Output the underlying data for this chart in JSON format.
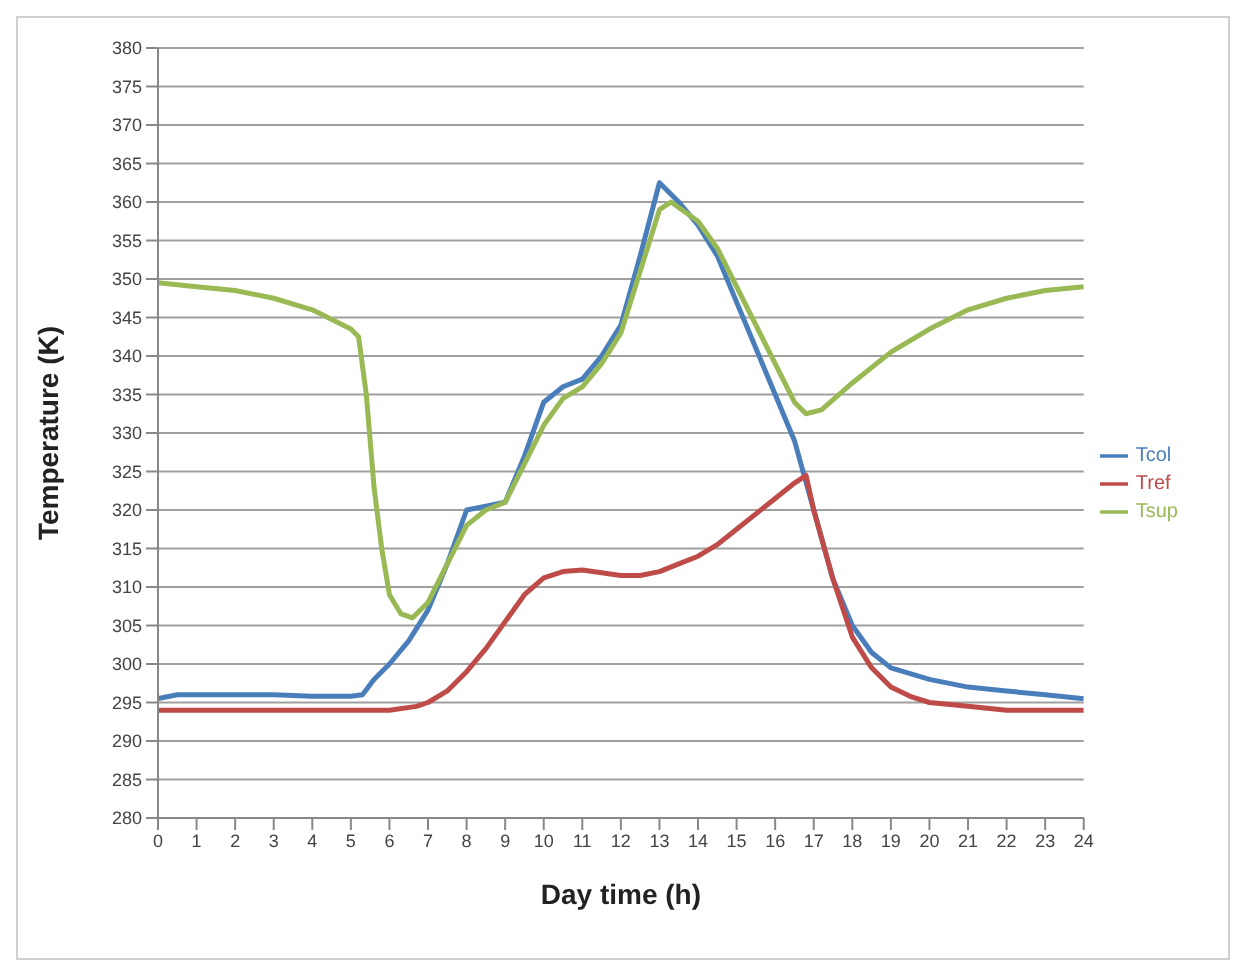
{
  "chart_data": {
    "type": "line",
    "xlabel": "Day time (h)",
    "ylabel": "Temperature (K)",
    "xlim": [
      0,
      24
    ],
    "xticks": [
      0,
      1,
      2,
      3,
      4,
      5,
      6,
      7,
      8,
      9,
      10,
      11,
      12,
      13,
      14,
      15,
      16,
      17,
      18,
      19,
      20,
      21,
      22,
      23,
      24
    ],
    "ylim": [
      280,
      380
    ],
    "yticks": [
      280,
      285,
      290,
      295,
      300,
      305,
      310,
      315,
      320,
      325,
      330,
      335,
      340,
      345,
      350,
      355,
      360,
      365,
      370,
      375,
      380
    ],
    "grid": "y",
    "legend": "right",
    "line_style": "solid",
    "series": [
      {
        "name": "Tcol",
        "color": "#4a7ebb",
        "x": [
          0,
          0.5,
          1,
          2,
          3,
          4,
          5,
          5.3,
          5.6,
          6,
          6.5,
          7,
          7.5,
          8,
          8.5,
          9,
          9.5,
          10,
          10.5,
          11,
          11.5,
          12,
          12.5,
          13,
          13.5,
          14,
          14.5,
          15,
          15.5,
          16,
          16.5,
          17,
          17.5,
          18,
          18.5,
          19,
          20,
          21,
          22,
          23,
          24
        ],
        "values": [
          295.5,
          296,
          296,
          296,
          296,
          295.8,
          295.8,
          296,
          298,
          300,
          303,
          307,
          313,
          320,
          320.5,
          321,
          327,
          334,
          336,
          337,
          340,
          344,
          353,
          362.5,
          360,
          357,
          353,
          347,
          341,
          335,
          329,
          320,
          311,
          305,
          301.5,
          299.5,
          298,
          297,
          296.5,
          296,
          295.5
        ]
      },
      {
        "name": "Tsup",
        "color": "#98b954",
        "x": [
          0,
          1,
          2,
          3,
          4,
          5,
          5.2,
          5.4,
          5.6,
          5.8,
          6,
          6.3,
          6.6,
          7,
          7.5,
          8,
          8.5,
          9,
          9.5,
          10,
          10.5,
          11,
          11.5,
          12,
          12.5,
          13,
          13.3,
          14,
          14.5,
          15,
          15.5,
          16,
          16.5,
          16.8,
          17.2,
          18,
          19,
          20,
          21,
          22,
          23,
          24
        ],
        "values": [
          349.5,
          349,
          348.5,
          347.5,
          346,
          343.5,
          342.5,
          335,
          323,
          315,
          309,
          306.5,
          306,
          308,
          313,
          318,
          320,
          321,
          326,
          331,
          334.5,
          336,
          339,
          343,
          351,
          359,
          360,
          357.5,
          354,
          349,
          344,
          339,
          334,
          332.5,
          333,
          336.5,
          340.5,
          343.5,
          346,
          347.5,
          348.5,
          349
        ]
      },
      {
        "name": "Tref",
        "color": "#be4b48",
        "x": [
          0,
          6,
          6.7,
          7,
          7.5,
          8,
          8.5,
          9,
          9.5,
          10,
          10.5,
          11,
          12,
          12.5,
          13,
          13.5,
          14,
          14.5,
          15,
          15.5,
          16,
          16.5,
          16.8,
          17,
          17.5,
          18,
          18.5,
          19,
          19.5,
          20,
          21,
          22,
          24
        ],
        "values": [
          294,
          294,
          294.5,
          295,
          296.5,
          299,
          302,
          305.5,
          309,
          311.2,
          312,
          312.2,
          311.5,
          311.5,
          312,
          313,
          314,
          315.5,
          317.5,
          319.5,
          321.5,
          323.5,
          324.5,
          320,
          311,
          303.5,
          299.5,
          297,
          295.8,
          295,
          294.5,
          294,
          294
        ]
      }
    ]
  }
}
